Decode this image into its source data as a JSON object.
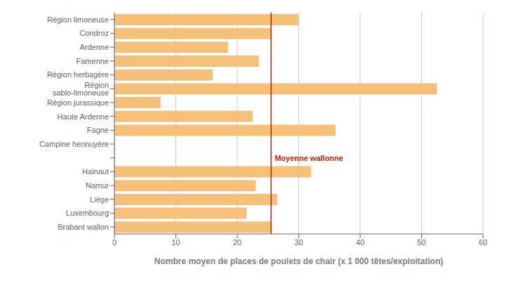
{
  "chart_data": {
    "type": "bar",
    "orientation": "horizontal",
    "categories": [
      "Brabant wallon",
      "Luxembourg",
      "Liège",
      "Namur",
      "Hainaut",
      null,
      "Campine hennuyère",
      "Fagne",
      "Haute Ardenne",
      "Région jurassique",
      "Région sablo-limoneuse",
      "Région herbagère",
      "Famenne",
      "Ardenne",
      "Condroz",
      "Région limoneuse"
    ],
    "values": [
      25.5,
      21.5,
      26.5,
      23.0,
      32.0,
      0,
      0,
      36.0,
      22.5,
      7.5,
      52.5,
      16.0,
      23.5,
      18.5,
      25.5,
      30.0
    ],
    "color": "#F5C07A",
    "xlabel": "Nombre moyen de places de poulets de chair (x 1 000 têtes/exploitation)",
    "xlim": [
      0,
      60
    ],
    "xticks": [
      0,
      10,
      20,
      30,
      40,
      50,
      60
    ],
    "grid": true,
    "annotations": [
      {
        "text": "Moyenne wallonne",
        "x": 25.5,
        "color": "#CC2200"
      }
    ]
  }
}
